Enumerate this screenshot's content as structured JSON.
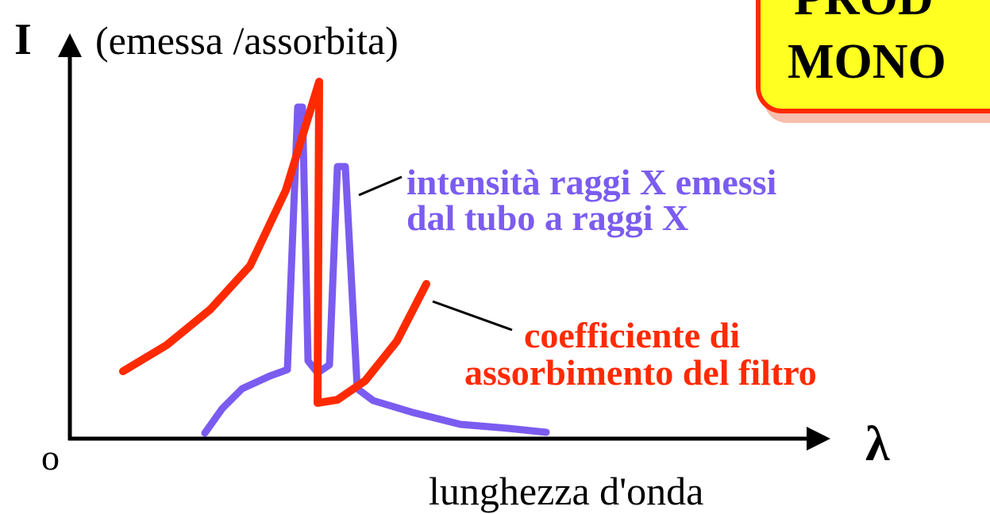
{
  "axis": {
    "y_label": "I",
    "y_note": "(emessa /assorbita)",
    "origin": "o",
    "x_symbol": "λ",
    "x_label": "lunghezza d'onda"
  },
  "annotations": {
    "emitted": [
      "intensità raggi X emessi",
      "dal tubo a raggi X"
    ],
    "absorption": [
      "coefficiente di",
      "assorbimento del filtro"
    ]
  },
  "box": {
    "lines": [
      "PROD",
      "MONO"
    ]
  }
}
